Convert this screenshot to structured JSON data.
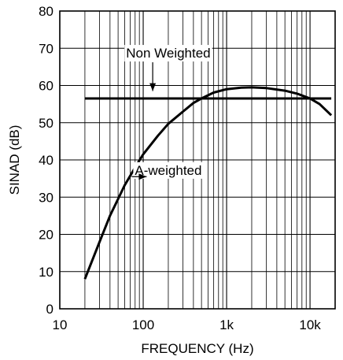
{
  "chart_data": {
    "type": "line",
    "title": "",
    "xlabel": "FREQUENCY (Hz)",
    "ylabel": "SINAD (dB)",
    "x_scale": "log",
    "xlim": [
      10,
      20000
    ],
    "ylim": [
      0,
      80
    ],
    "x_ticks": [
      {
        "value": 10,
        "label": "10"
      },
      {
        "value": 100,
        "label": "100"
      },
      {
        "value": 1000,
        "label": "1k"
      },
      {
        "value": 10000,
        "label": "10k"
      }
    ],
    "y_ticks": [
      {
        "value": 0,
        "label": "0"
      },
      {
        "value": 10,
        "label": "10"
      },
      {
        "value": 20,
        "label": "20"
      },
      {
        "value": 30,
        "label": "30"
      },
      {
        "value": 40,
        "label": "40"
      },
      {
        "value": 50,
        "label": "50"
      },
      {
        "value": 60,
        "label": "60"
      },
      {
        "value": 70,
        "label": "70"
      },
      {
        "value": 80,
        "label": "80"
      }
    ],
    "grid": true,
    "series": [
      {
        "key": "non-weighted",
        "name": "",
        "x": [
          20,
          18000
        ],
        "y": [
          56.5,
          56.5
        ]
      },
      {
        "key": "a-weighted",
        "name": "",
        "x": [
          20,
          25,
          30,
          40,
          50,
          60,
          80,
          100,
          150,
          200,
          300,
          400,
          500,
          700,
          1000,
          1500,
          2000,
          3000,
          5000,
          7000,
          10000,
          13000,
          18000
        ],
        "y": [
          8,
          13.5,
          18,
          25,
          29.5,
          33.2,
          38,
          41.5,
          46.5,
          49.7,
          53,
          55.3,
          56.5,
          58.1,
          59,
          59.4,
          59.5,
          59.3,
          58.6,
          57.8,
          56.5,
          55,
          52
        ]
      }
    ],
    "annotations": [
      {
        "text": "Non Weighted",
        "x": 200,
        "y": 67.5,
        "arrow_to": {
          "x": 130,
          "y": 58.5
        }
      },
      {
        "text": "A-weighted",
        "x": 200,
        "y": 36,
        "arrow_to": {
          "x": 110,
          "y": 35.5
        }
      }
    ]
  }
}
